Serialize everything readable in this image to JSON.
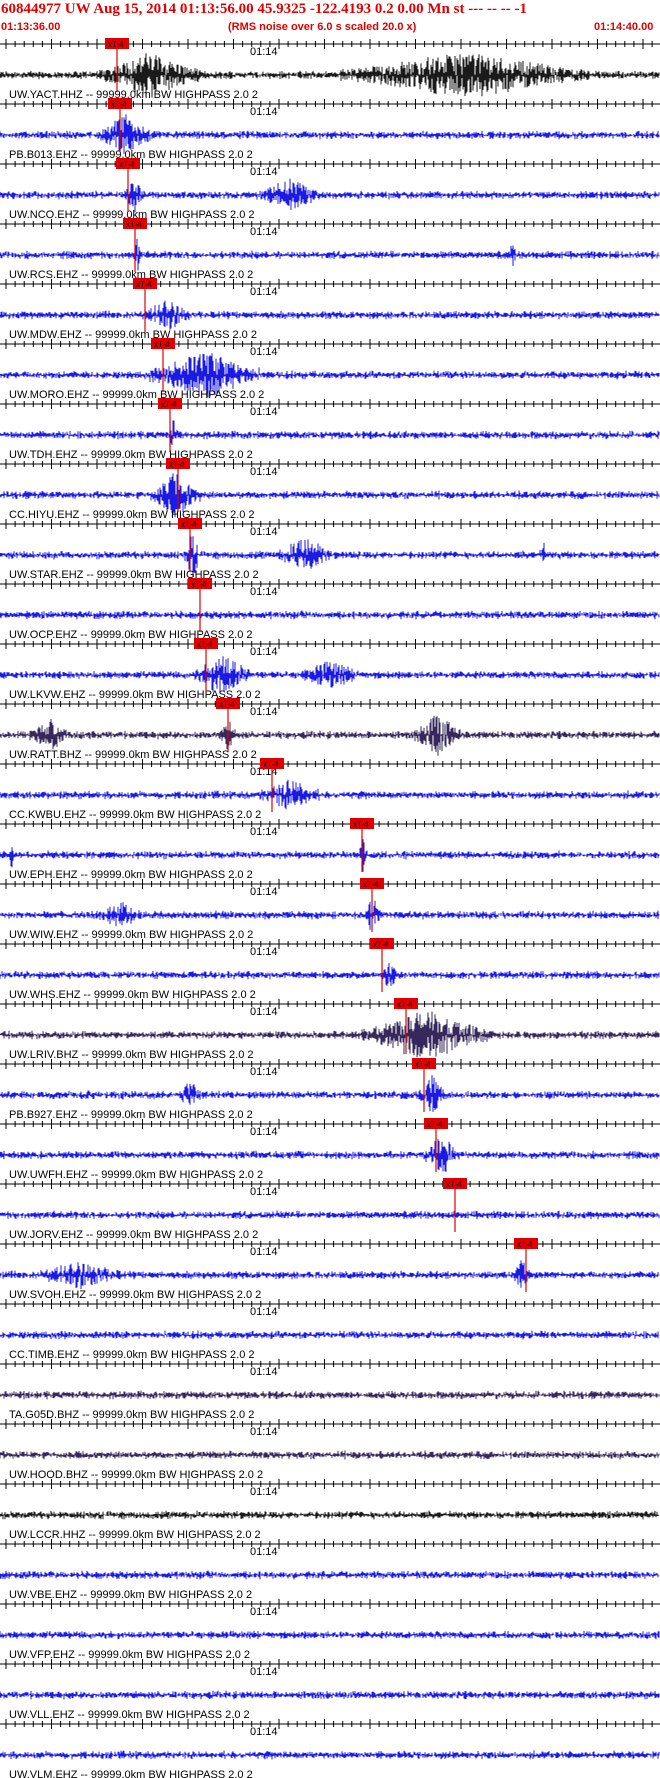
{
  "header": {
    "title": "60844977 UW Aug 15, 2014 01:13:56.00   45.9325 -122.4193  0.2 0.00 Mn st --- -- --  -1",
    "start_time": "01:13:36.00",
    "subtitle": "(RMS noise over 6.0 s scaled 20.0 x)",
    "end_time": "01:14:40.00"
  },
  "chart_data": {
    "type": "line",
    "title": "60844977 UW Aug 15, 2014 01:13:56.00   45.9325 -122.4193  0.2 0.00 Mn st --- -- --  -1",
    "subtitle": "(RMS noise over 6.0 s scaled 20.0 x)",
    "x_range": [
      "01:13:36.00",
      "01:14:40.00"
    ],
    "time_mark": "01:14",
    "pick_label": "xT-4",
    "colors": {
      "header": "#e00000",
      "trace": "#0000e0",
      "trace_dark": "#20104a",
      "pick": "#e00000",
      "axis": "#000000"
    },
    "traces": [
      {
        "station": "UW.YACT.HHZ -- 99999.0km BW  HIGHPASS  2.0  2",
        "color": "#000000",
        "pick_x": 117,
        "activity": [
          [
            100,
            200,
            0.9
          ],
          [
            340,
            590,
            0.9
          ]
        ]
      },
      {
        "station": "PB.B013.EHZ -- 99999.0km BW  HIGHPASS  2.0  2",
        "color": "#0000e0",
        "pick_x": 120,
        "activity": [
          [
            100,
            150,
            0.8
          ]
        ]
      },
      {
        "station": "UW.NCO.EHZ -- 99999.0km BW  HIGHPASS  2.0  2",
        "color": "#0000e0",
        "pick_x": 128,
        "activity": [
          [
            125,
            145,
            0.7
          ],
          [
            260,
            320,
            0.6
          ]
        ]
      },
      {
        "station": "UW.RCS.EHZ -- 99999.0km BW  HIGHPASS  2.0  2",
        "color": "#0000e0",
        "pick_x": 135,
        "activity": [
          [
            135,
            140,
            1.0
          ],
          [
            510,
            515,
            0.6
          ]
        ]
      },
      {
        "station": "UW.MDW.EHZ -- 99999.0km BW  HIGHPASS  2.0  2",
        "color": "#0000e0",
        "pick_x": 145,
        "activity": [
          [
            145,
            190,
            0.6
          ]
        ]
      },
      {
        "station": "UW.MORO.EHZ -- 99999.0km BW  HIGHPASS  2.0  2",
        "color": "#0000e0",
        "pick_x": 163,
        "activity": [
          [
            150,
            260,
            1.0
          ]
        ]
      },
      {
        "station": "UW.TDH.EHZ -- 99999.0km BW  HIGHPASS  2.0  2",
        "color": "#0000e0",
        "pick_x": 170,
        "activity": [
          [
            168,
            178,
            0.6
          ]
        ]
      },
      {
        "station": "CC.HIYU.EHZ -- 99999.0km BW  HIGHPASS  2.0  2",
        "color": "#0000e0",
        "pick_x": 178,
        "activity": [
          [
            150,
            200,
            0.9
          ]
        ]
      },
      {
        "station": "UW.STAR.EHZ -- 99999.0km BW  HIGHPASS  2.0  2",
        "color": "#0000e0",
        "pick_x": 190,
        "activity": [
          [
            185,
            200,
            1.0
          ],
          [
            280,
            330,
            0.7
          ],
          [
            540,
            545,
            0.9
          ]
        ]
      },
      {
        "station": "UW.OCP.EHZ -- 99999.0km BW  HIGHPASS  2.0  2",
        "color": "#0000e0",
        "pick_x": 200,
        "activity": []
      },
      {
        "station": "UW.LKVW.EHZ -- 99999.0km BW  HIGHPASS  2.0  2",
        "color": "#0000e0",
        "pick_x": 206,
        "activity": [
          [
            195,
            250,
            0.9
          ],
          [
            300,
            360,
            0.5
          ]
        ]
      },
      {
        "station": "UW.RATT.BHZ -- 99999.0km BW  HIGHPASS  2.0  2",
        "color": "#20104a",
        "pick_x": 228,
        "activity": [
          [
            30,
            70,
            0.6
          ],
          [
            220,
            235,
            0.7
          ],
          [
            415,
            460,
            0.9
          ]
        ]
      },
      {
        "station": "CC.KWBU.EHZ -- 99999.0km BW  HIGHPASS  2.0  2",
        "color": "#0000e0",
        "pick_x": 272,
        "activity": [
          [
            260,
            320,
            0.6
          ]
        ]
      },
      {
        "station": "UW.EPH.EHZ -- 99999.0km BW  HIGHPASS  2.0  2",
        "color": "#0000e0",
        "pick_x": 362,
        "activity": [
          [
            10,
            13,
            1.0
          ],
          [
            360,
            366,
            0.8
          ]
        ]
      },
      {
        "station": "UW.WIW.EHZ -- 99999.0km BW  HIGHPASS  2.0  2",
        "color": "#0000e0",
        "pick_x": 372,
        "activity": [
          [
            100,
            140,
            0.5
          ],
          [
            365,
            380,
            0.7
          ]
        ]
      },
      {
        "station": "UW.WHS.EHZ -- 99999.0km BW  HIGHPASS  2.0  2",
        "color": "#0000e0",
        "pick_x": 382,
        "activity": [
          [
            380,
            400,
            0.5
          ]
        ]
      },
      {
        "station": "UW.LRIV.BHZ -- 99999.0km BW  HIGHPASS  2.0  2",
        "color": "#20104a",
        "pick_x": 406,
        "activity": [
          [
            360,
            490,
            1.0
          ]
        ]
      },
      {
        "station": "PB.B927.EHZ -- 99999.0km BW  HIGHPASS  2.0  2",
        "color": "#0000e0",
        "pick_x": 424,
        "activity": [
          [
            420,
            445,
            0.8
          ],
          [
            180,
            200,
            0.5
          ]
        ]
      },
      {
        "station": "UW.UWFH.EHZ -- 99999.0km BW  HIGHPASS  2.0  2",
        "color": "#0000e0",
        "pick_x": 436,
        "activity": [
          [
            425,
            460,
            0.8
          ]
        ]
      },
      {
        "station": "UW.JORV.EHZ -- 99999.0km BW  HIGHPASS  2.0  2",
        "color": "#0000e0",
        "pick_x": 455,
        "activity": []
      },
      {
        "station": "UW.SVOH.EHZ -- 99999.0km BW  HIGHPASS  2.0  2",
        "color": "#0000e0",
        "pick_x": 526,
        "activity": [
          [
            40,
            120,
            0.5
          ],
          [
            515,
            530,
            0.7
          ]
        ]
      },
      {
        "station": "CC.TIMB.EHZ -- 99999.0km BW  HIGHPASS  2.0  2",
        "color": "#0000e0",
        "pick_x": null,
        "activity": []
      },
      {
        "station": "TA.G05D.BHZ -- 99999.0km BW  HIGHPASS  2.0  2",
        "color": "#20104a",
        "pick_x": null,
        "activity": []
      },
      {
        "station": "UW.HOOD.BHZ -- 99999.0km BW  HIGHPASS  2.0  2",
        "color": "#20104a",
        "pick_x": null,
        "activity": []
      },
      {
        "station": "UW.LCCR.HHZ -- 99999.0km BW  HIGHPASS  2.0  2",
        "color": "#000000",
        "pick_x": null,
        "activity": []
      },
      {
        "station": "UW.VBE.EHZ -- 99999.0km BW  HIGHPASS  2.0  2",
        "color": "#0000e0",
        "pick_x": null,
        "activity": []
      },
      {
        "station": "UW.VFP.EHZ -- 99999.0km BW  HIGHPASS  2.0  2",
        "color": "#0000e0",
        "pick_x": null,
        "activity": []
      },
      {
        "station": "UW.VLL.EHZ -- 99999.0km BW  HIGHPASS  2.0  2",
        "color": "#0000e0",
        "pick_x": null,
        "activity": []
      },
      {
        "station": "UW.VLM.EHZ -- 99999.0km BW  HIGHPASS  2.0  2",
        "color": "#0000e0",
        "pick_x": null,
        "activity": []
      }
    ]
  }
}
